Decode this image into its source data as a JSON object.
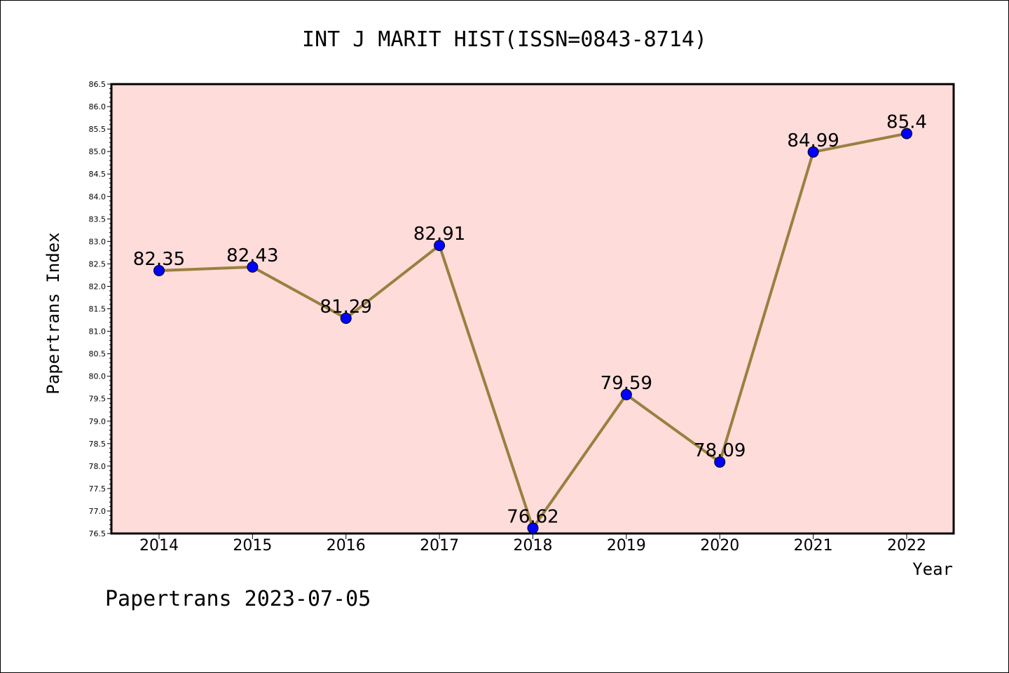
{
  "chart_data": {
    "type": "line",
    "title": "INT J MARIT HIST(ISSN=0843-8714)",
    "xlabel": "Year",
    "ylabel": "Papertrans Index",
    "categories": [
      "2014",
      "2015",
      "2016",
      "2017",
      "2018",
      "2019",
      "2020",
      "2021",
      "2022"
    ],
    "values": [
      82.35,
      82.43,
      81.29,
      82.91,
      76.62,
      79.59,
      78.09,
      84.99,
      85.4
    ],
    "data_labels": [
      "82.35",
      "82.43",
      "81.29",
      "82.91",
      "76.62",
      "79.59",
      "78.09",
      "84.99",
      "85.4"
    ],
    "ylim": [
      76.5,
      86.5
    ],
    "yticks": [
      "76.5",
      "77.0",
      "77.5",
      "78.0",
      "78.5",
      "79.0",
      "79.5",
      "80.0",
      "80.5",
      "81.0",
      "81.5",
      "82.0",
      "82.5",
      "83.0",
      "83.5",
      "84.0",
      "84.5",
      "85.0",
      "85.5",
      "86.0",
      "86.5"
    ],
    "grid": false,
    "colors": {
      "plot_background": "#fddcda",
      "line": "#9a8040",
      "marker": "#0000ff"
    }
  },
  "footer": "Papertrans 2023-07-05"
}
